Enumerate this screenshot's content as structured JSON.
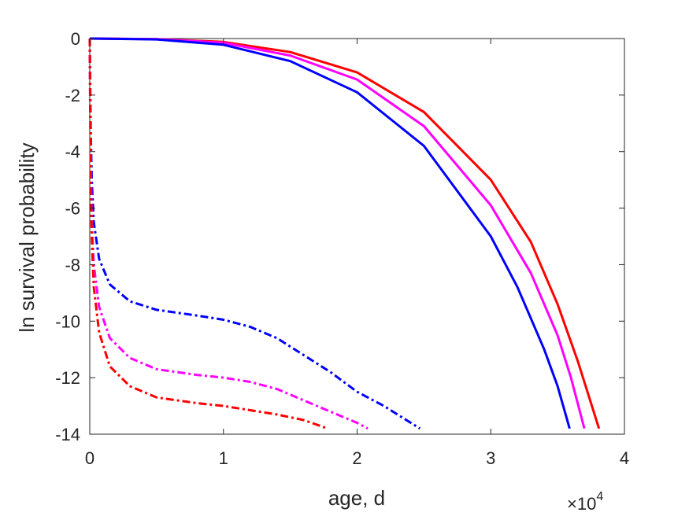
{
  "chart_data": {
    "type": "line",
    "xlabel": "age, d",
    "ylabel": "ln survival probability",
    "x_exponent_label": {
      "base": "×10",
      "exponent": "4"
    },
    "xlim": [
      0,
      40000
    ],
    "ylim": [
      -14,
      0
    ],
    "x_ticks": [
      {
        "value": 0,
        "label": "0"
      },
      {
        "value": 10000,
        "label": "1"
      },
      {
        "value": 20000,
        "label": "2"
      },
      {
        "value": 30000,
        "label": "3"
      },
      {
        "value": 40000,
        "label": "4"
      }
    ],
    "y_ticks": [
      {
        "value": 0,
        "label": "0"
      },
      {
        "value": -2,
        "label": "-2"
      },
      {
        "value": -4,
        "label": "-4"
      },
      {
        "value": -6,
        "label": "-6"
      },
      {
        "value": -8,
        "label": "-8"
      },
      {
        "value": -10,
        "label": "-10"
      },
      {
        "value": -12,
        "label": "-12"
      },
      {
        "value": -14,
        "label": "-14"
      }
    ],
    "grid": false,
    "series": [
      {
        "color": "#ff0000",
        "style": "solid",
        "points": [
          [
            0,
            0
          ],
          [
            5000,
            -0.02
          ],
          [
            10000,
            -0.12
          ],
          [
            15000,
            -0.48
          ],
          [
            20000,
            -1.2
          ],
          [
            25000,
            -2.6
          ],
          [
            30000,
            -5.0
          ],
          [
            33000,
            -7.2
          ],
          [
            35000,
            -9.4
          ],
          [
            36500,
            -11.4
          ],
          [
            38100,
            -13.8
          ]
        ]
      },
      {
        "color": "#ff00ff",
        "style": "solid",
        "points": [
          [
            0,
            0
          ],
          [
            5000,
            -0.02
          ],
          [
            10000,
            -0.15
          ],
          [
            15000,
            -0.6
          ],
          [
            20000,
            -1.45
          ],
          [
            25000,
            -3.1
          ],
          [
            30000,
            -5.9
          ],
          [
            33000,
            -8.3
          ],
          [
            35000,
            -10.5
          ],
          [
            36000,
            -12.0
          ],
          [
            37000,
            -13.8
          ]
        ]
      },
      {
        "color": "#0000ff",
        "style": "solid",
        "points": [
          [
            0,
            0
          ],
          [
            5000,
            -0.03
          ],
          [
            10000,
            -0.22
          ],
          [
            15000,
            -0.8
          ],
          [
            20000,
            -1.9
          ],
          [
            25000,
            -3.8
          ],
          [
            30000,
            -7.0
          ],
          [
            32000,
            -8.8
          ],
          [
            34000,
            -11.0
          ],
          [
            35000,
            -12.3
          ],
          [
            35900,
            -13.8
          ]
        ]
      },
      {
        "color": "#0000ff",
        "style": "dashdot",
        "points": [
          [
            0,
            0
          ],
          [
            30,
            -1.5
          ],
          [
            80,
            -3.5
          ],
          [
            150,
            -5.0
          ],
          [
            300,
            -6.5
          ],
          [
            700,
            -7.8
          ],
          [
            1500,
            -8.7
          ],
          [
            3000,
            -9.3
          ],
          [
            5000,
            -9.6
          ],
          [
            8000,
            -9.8
          ],
          [
            10000,
            -9.95
          ],
          [
            12000,
            -10.2
          ],
          [
            14000,
            -10.6
          ],
          [
            16000,
            -11.2
          ],
          [
            18000,
            -11.8
          ],
          [
            20000,
            -12.5
          ],
          [
            22000,
            -13.0
          ],
          [
            24700,
            -13.8
          ]
        ]
      },
      {
        "color": "#ff00ff",
        "style": "dashdot",
        "points": [
          [
            0,
            0
          ],
          [
            30,
            -2.0
          ],
          [
            80,
            -4.5
          ],
          [
            150,
            -6.5
          ],
          [
            300,
            -8.0
          ],
          [
            700,
            -9.5
          ],
          [
            1500,
            -10.6
          ],
          [
            3000,
            -11.3
          ],
          [
            5000,
            -11.7
          ],
          [
            8000,
            -11.9
          ],
          [
            10000,
            -12.0
          ],
          [
            12000,
            -12.15
          ],
          [
            14000,
            -12.4
          ],
          [
            16000,
            -12.8
          ],
          [
            18000,
            -13.2
          ],
          [
            20000,
            -13.6
          ],
          [
            20800,
            -13.8
          ]
        ]
      },
      {
        "color": "#ff0000",
        "style": "dashdot",
        "points": [
          [
            0,
            0
          ],
          [
            30,
            -2.5
          ],
          [
            80,
            -5.0
          ],
          [
            150,
            -7.0
          ],
          [
            300,
            -8.8
          ],
          [
            700,
            -10.4
          ],
          [
            1500,
            -11.6
          ],
          [
            3000,
            -12.3
          ],
          [
            5000,
            -12.7
          ],
          [
            8000,
            -12.9
          ],
          [
            10000,
            -13.0
          ],
          [
            12000,
            -13.15
          ],
          [
            14000,
            -13.3
          ],
          [
            16000,
            -13.5
          ],
          [
            17800,
            -13.8
          ]
        ]
      }
    ]
  }
}
